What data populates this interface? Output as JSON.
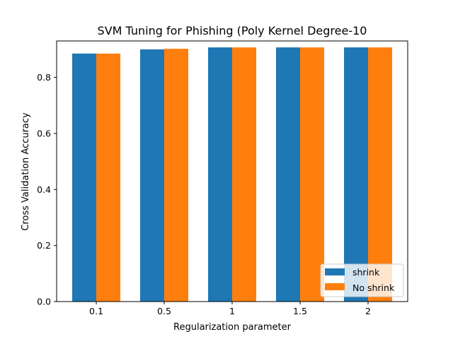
{
  "chart_data": {
    "type": "bar",
    "title": "SVM Tuning for Phishing (Poly Kernel Degree-10",
    "xlabel": "Regularization parameter",
    "ylabel": "Cross Validation Accuracy",
    "categories": [
      "0.1",
      "0.5",
      "1",
      "1.5",
      "2"
    ],
    "ylim": [
      0,
      0.93
    ],
    "yticks": [
      "0.0",
      "0.2",
      "0.4",
      "0.6",
      "0.8"
    ],
    "series": [
      {
        "name": "shrink",
        "color": "#1f77b4",
        "values": [
          0.885,
          0.9,
          0.907,
          0.907,
          0.907
        ]
      },
      {
        "name": "No shrink",
        "color": "#ff7f0e",
        "values": [
          0.885,
          0.902,
          0.907,
          0.907,
          0.907
        ]
      }
    ],
    "grid": false,
    "legend": "lower-right"
  }
}
